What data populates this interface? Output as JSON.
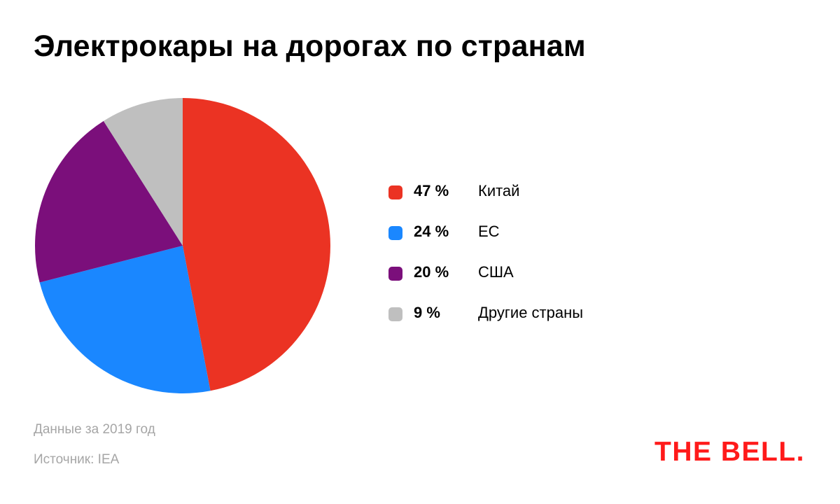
{
  "chart_data": {
    "type": "pie",
    "title": "Электрокары на дорогах по странам",
    "slices": [
      {
        "label": "Китай",
        "value": 47,
        "value_label": "47 %",
        "color": "#eb3323"
      },
      {
        "label": "ЕС",
        "value": 24,
        "value_label": "24 %",
        "color": "#1a87ff"
      },
      {
        "label": "США",
        "value": 20,
        "value_label": "20 %",
        "color": "#7b0f7b"
      },
      {
        "label": "Другие страны",
        "value": 9,
        "value_label": "9 %",
        "color": "#bfbfbf"
      }
    ],
    "start": "12 o'clock",
    "direction": "clockwise",
    "legend_position": "right"
  },
  "footer": {
    "period_note": "Данные за 2019 год",
    "source_note": "Источник: IEA"
  },
  "brand": {
    "logo_text": "THE BELL.",
    "logo_color": "#ff1a1a"
  }
}
